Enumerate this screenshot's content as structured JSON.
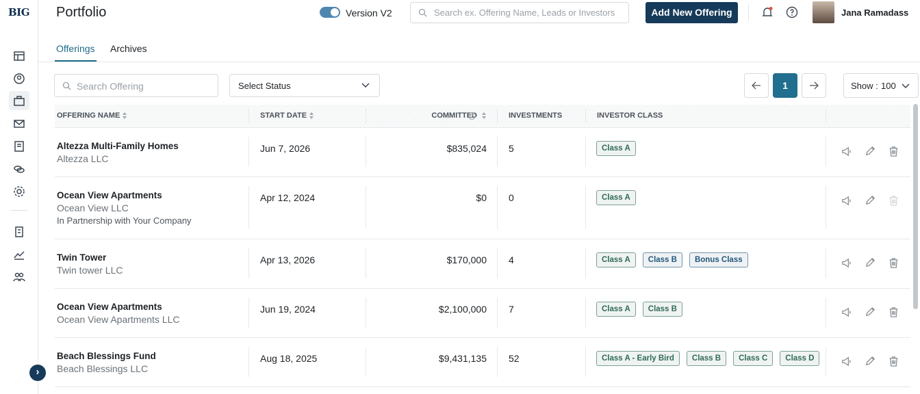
{
  "logo": "BIG",
  "header": {
    "title": "Portfolio",
    "toggle_label": "Version V2",
    "search_placeholder": "Search ex. Offering Name, Leads or Investors",
    "add_button": "Add New Offering",
    "user_name": "Jana Ramadass"
  },
  "tabs": [
    "Offerings",
    "Archives"
  ],
  "filters": {
    "search_placeholder": "Search Offering",
    "status_select": "Select Status",
    "current_page": "1",
    "show_label": "Show :",
    "show_value": "100"
  },
  "table": {
    "columns": [
      "OFFERING NAME",
      "START DATE",
      "COMMITTED",
      "INVESTMENTS",
      "INVESTOR CLASS"
    ],
    "rows": [
      {
        "name": "Altezza Multi-Family Homes",
        "company": "Altezza LLC",
        "start_date": "Jun 7, 2026",
        "committed": "$835,024",
        "investments": "5",
        "classes": [
          {
            "label": "Class A",
            "color": "#2f6b57"
          }
        ]
      },
      {
        "name": "Ocean View Apartments",
        "company": "Ocean View LLC",
        "note": "In Partnership with Your Company",
        "start_date": "Apr 12, 2024",
        "committed": "$0",
        "investments": "0",
        "classes": [
          {
            "label": "Class A",
            "color": "#2f6b57"
          }
        ]
      },
      {
        "name": "Twin Tower",
        "company": "Twin tower LLC",
        "start_date": "Apr 13, 2026",
        "committed": "$170,000",
        "investments": "4",
        "classes": [
          {
            "label": "Class A",
            "color": "#2f6b57"
          },
          {
            "label": "Class B",
            "color": "#23577a"
          },
          {
            "label": "Bonus Class",
            "color": "#23577a"
          }
        ]
      },
      {
        "name": "Ocean View Apartments",
        "company": "Ocean View Apartments LLC",
        "start_date": "Jun 19, 2024",
        "committed": "$2,100,000",
        "investments": "7",
        "classes": [
          {
            "label": "Class A",
            "color": "#2f6b57"
          },
          {
            "label": "Class B",
            "color": "#2f6b57"
          }
        ]
      },
      {
        "name": "Beach Blessings Fund",
        "company": "Beach Blessings LLC",
        "start_date": "Aug 18, 2025",
        "committed": "$9,431,135",
        "investments": "52",
        "classes": [
          {
            "label": "Class A - Early Bird",
            "color": "#2f6b57"
          },
          {
            "label": "Class B",
            "color": "#2f6b57"
          },
          {
            "label": "Class C",
            "color": "#2f6b57"
          },
          {
            "label": "Class D",
            "color": "#2f6b57"
          }
        ]
      }
    ]
  }
}
